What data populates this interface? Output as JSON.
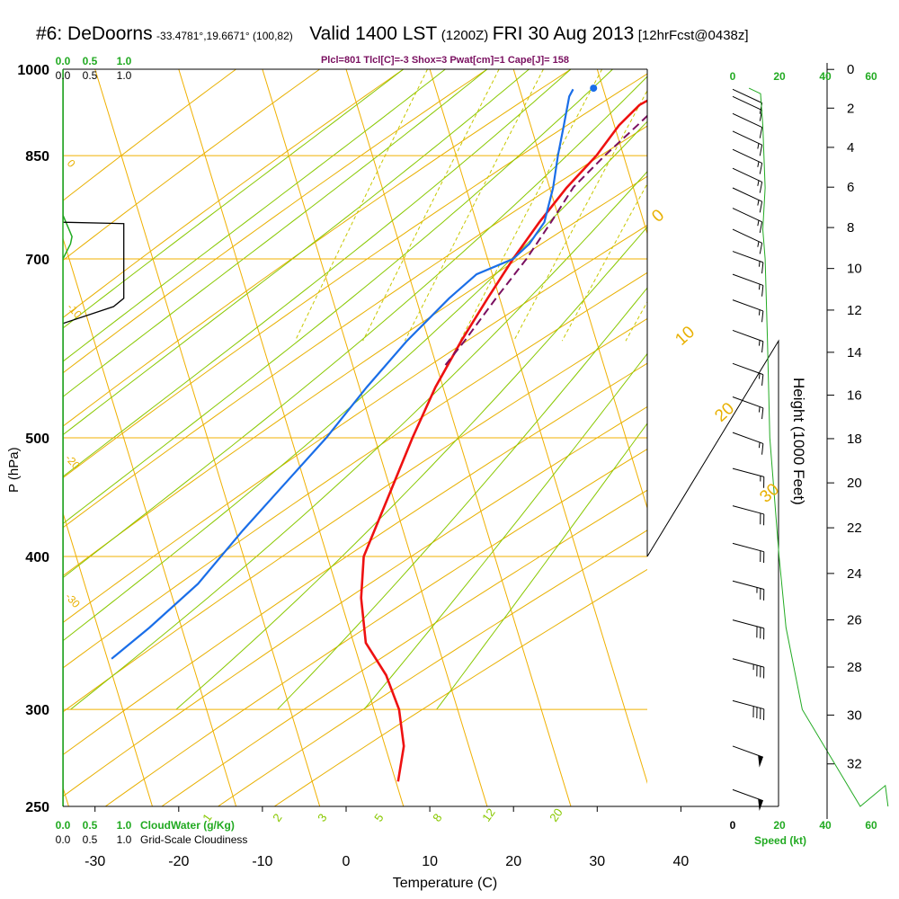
{
  "header": {
    "station": "#6: DeDoorns",
    "coords": "-33.4781°,19.6671° (100,82)",
    "valid": "Valid 1400 LST",
    "zulu": "(1200Z)",
    "date": "FRI 30 Aug 2013",
    "forecast": "[12hrFcst@0438z]",
    "indices": "Plcl=801 Tlcl[C]=-3 Shox=3 Pwat[cm]=1 Cape[J]= 158"
  },
  "colors": {
    "isotherm": "#f0b000",
    "mixing": "#c8c800",
    "dryadiabat": "#e8b000",
    "moistadiabat": "#88c800",
    "temp": "#ee1111",
    "dew": "#1a6ee8",
    "parcel": "#7a1060",
    "green": "#22aa22",
    "black": "#000000"
  },
  "left_scales": {
    "top_green": [
      "0.0",
      "0.5",
      "1.0"
    ],
    "top_black": [
      "0.0",
      "0.5",
      "1.0"
    ],
    "bottom_green": [
      "0.0",
      "0.5",
      "1.0"
    ],
    "bottom_green_label": "CloudWater (g/Kg)",
    "bottom_black": [
      "0.0",
      "0.5",
      "1.0"
    ],
    "bottom_black_label": "Grid-Scale Cloudiness"
  },
  "speed_scale": {
    "top_black": [
      "0"
    ],
    "top_green": [
      "20",
      "40",
      "60"
    ],
    "bottom_black": [
      "0",
      "20",
      "40"
    ],
    "bottom_green": [
      "60"
    ],
    "label": "Speed (kt)"
  },
  "chart_data": {
    "type": "skew-t sounding",
    "xlabel": "Temperature (C)",
    "ylabel": "P (hPa)",
    "y2label": "Height (1000 Feet)",
    "x_ticks": [
      -30,
      -20,
      -10,
      0,
      10,
      20,
      30,
      40
    ],
    "p_ticks": [
      250,
      300,
      400,
      500,
      700,
      850,
      1000
    ],
    "height_ticks": [
      0,
      2,
      4,
      6,
      8,
      10,
      12,
      14,
      16,
      18,
      20,
      22,
      24,
      26,
      28,
      30,
      32
    ],
    "xlim": [
      -33.5,
      36
    ],
    "plim": [
      1000,
      250
    ],
    "dry_adiabat_labels": [
      "0",
      "10",
      "20",
      "30",
      "0",
      "-10",
      "-20",
      "-30"
    ],
    "mixing_ratio_labels": [
      "1",
      "2",
      "3",
      "5",
      "8",
      "12",
      "20"
    ],
    "temperature": [
      {
        "p": 965,
        "t": 13.3
      },
      {
        "p": 955,
        "t": 11.5
      },
      {
        "p": 935,
        "t": 9.5
      },
      {
        "p": 900,
        "t": 7.8
      },
      {
        "p": 850,
        "t": 6.2
      },
      {
        "p": 800,
        "t": 3.8
      },
      {
        "p": 750,
        "t": 1.8
      },
      {
        "p": 700,
        "t": 0.0
      },
      {
        "p": 650,
        "t": -1.6
      },
      {
        "p": 600,
        "t": -3.2
      },
      {
        "p": 550,
        "t": -4.6
      },
      {
        "p": 500,
        "t": -5.5
      },
      {
        "p": 450,
        "t": -6.2
      },
      {
        "p": 400,
        "t": -7.0
      },
      {
        "p": 370,
        "t": -5.8
      },
      {
        "p": 340,
        "t": -3.6
      },
      {
        "p": 320,
        "t": 0.0
      },
      {
        "p": 300,
        "t": 2.8
      },
      {
        "p": 280,
        "t": 4.7
      },
      {
        "p": 262,
        "t": 5.3
      }
    ],
    "dewpoint": [
      {
        "p": 963,
        "t": 1.0
      },
      {
        "p": 950,
        "t": 0.8
      },
      {
        "p": 900,
        "t": 1.2
      },
      {
        "p": 850,
        "t": 1.6
      },
      {
        "p": 800,
        "t": 2.2
      },
      {
        "p": 750,
        "t": 2.4
      },
      {
        "p": 720,
        "t": 1.4
      },
      {
        "p": 700,
        "t": 0.0
      },
      {
        "p": 680,
        "t": -3.8
      },
      {
        "p": 650,
        "t": -6.2
      },
      {
        "p": 600,
        "t": -9.7
      },
      {
        "p": 550,
        "t": -12.8
      },
      {
        "p": 500,
        "t": -15.8
      },
      {
        "p": 450,
        "t": -19.8
      },
      {
        "p": 420,
        "t": -22.4
      },
      {
        "p": 380,
        "t": -25.8
      },
      {
        "p": 350,
        "t": -30.0
      },
      {
        "p": 330,
        "t": -33.4
      }
    ],
    "parcel": [
      {
        "p": 963,
        "t": 13.2
      },
      {
        "p": 900,
        "t": 10.0
      },
      {
        "p": 850,
        "t": 7.2
      },
      {
        "p": 801,
        "t": 4.6
      },
      {
        "p": 750,
        "t": 3.2
      },
      {
        "p": 700,
        "t": 1.6
      },
      {
        "p": 650,
        "t": -0.6
      },
      {
        "p": 600,
        "t": -2.8
      },
      {
        "p": 570,
        "t": -4.4
      }
    ],
    "surface_temp": 13.8,
    "surface_dew": 3.4,
    "surface_p": 965,
    "wind_barbs": [
      {
        "p": 258,
        "speed": 50,
        "dir": 290
      },
      {
        "p": 280,
        "speed": 50,
        "dir": 290
      },
      {
        "p": 305,
        "speed": 40,
        "dir": 285
      },
      {
        "p": 330,
        "speed": 35,
        "dir": 285
      },
      {
        "p": 355,
        "speed": 30,
        "dir": 285
      },
      {
        "p": 382,
        "speed": 25,
        "dir": 285
      },
      {
        "p": 410,
        "speed": 20,
        "dir": 285
      },
      {
        "p": 440,
        "speed": 20,
        "dir": 285
      },
      {
        "p": 472,
        "speed": 15,
        "dir": 285
      },
      {
        "p": 505,
        "speed": 15,
        "dir": 290
      },
      {
        "p": 540,
        "speed": 15,
        "dir": 290
      },
      {
        "p": 575,
        "speed": 15,
        "dir": 290
      },
      {
        "p": 612,
        "speed": 15,
        "dir": 290
      },
      {
        "p": 648,
        "speed": 15,
        "dir": 290
      },
      {
        "p": 680,
        "speed": 15,
        "dir": 290
      },
      {
        "p": 710,
        "speed": 15,
        "dir": 290
      },
      {
        "p": 740,
        "speed": 15,
        "dir": 295
      },
      {
        "p": 770,
        "speed": 15,
        "dir": 295
      },
      {
        "p": 800,
        "speed": 15,
        "dir": 295
      },
      {
        "p": 830,
        "speed": 15,
        "dir": 295
      },
      {
        "p": 860,
        "speed": 15,
        "dir": 295
      },
      {
        "p": 890,
        "speed": 15,
        "dir": 295
      },
      {
        "p": 920,
        "speed": 10,
        "dir": 295
      },
      {
        "p": 950,
        "speed": 10,
        "dir": 295
      },
      {
        "p": 963,
        "speed": 10,
        "dir": 295
      }
    ],
    "speed_profile_kt": [
      {
        "p": 965,
        "v": 7
      },
      {
        "p": 955,
        "v": 12
      },
      {
        "p": 900,
        "v": 13
      },
      {
        "p": 800,
        "v": 14
      },
      {
        "p": 740,
        "v": 13
      },
      {
        "p": 700,
        "v": 14
      },
      {
        "p": 600,
        "v": 15
      },
      {
        "p": 500,
        "v": 16
      },
      {
        "p": 400,
        "v": 20
      },
      {
        "p": 350,
        "v": 23
      },
      {
        "p": 300,
        "v": 30
      },
      {
        "p": 250,
        "v": 55
      }
    ],
    "cloud_water_profile": [
      {
        "p": 1000,
        "v": 0.0
      },
      {
        "p": 760,
        "v": 0.0
      },
      {
        "p": 740,
        "v": 0.08
      },
      {
        "p": 730,
        "v": 0.12
      },
      {
        "p": 720,
        "v": 0.1
      },
      {
        "p": 700,
        "v": 0.0
      },
      {
        "p": 250,
        "v": 0.0
      }
    ],
    "cloudiness_profile": [
      {
        "p": 1000,
        "v": 0.0
      },
      {
        "p": 750,
        "v": 0.0
      },
      {
        "p": 748,
        "v": 0.72
      },
      {
        "p": 700,
        "v": 0.72
      },
      {
        "p": 650,
        "v": 0.72
      },
      {
        "p": 640,
        "v": 0.6
      },
      {
        "p": 620,
        "v": 0.0
      },
      {
        "p": 250,
        "v": 0.0
      }
    ]
  }
}
